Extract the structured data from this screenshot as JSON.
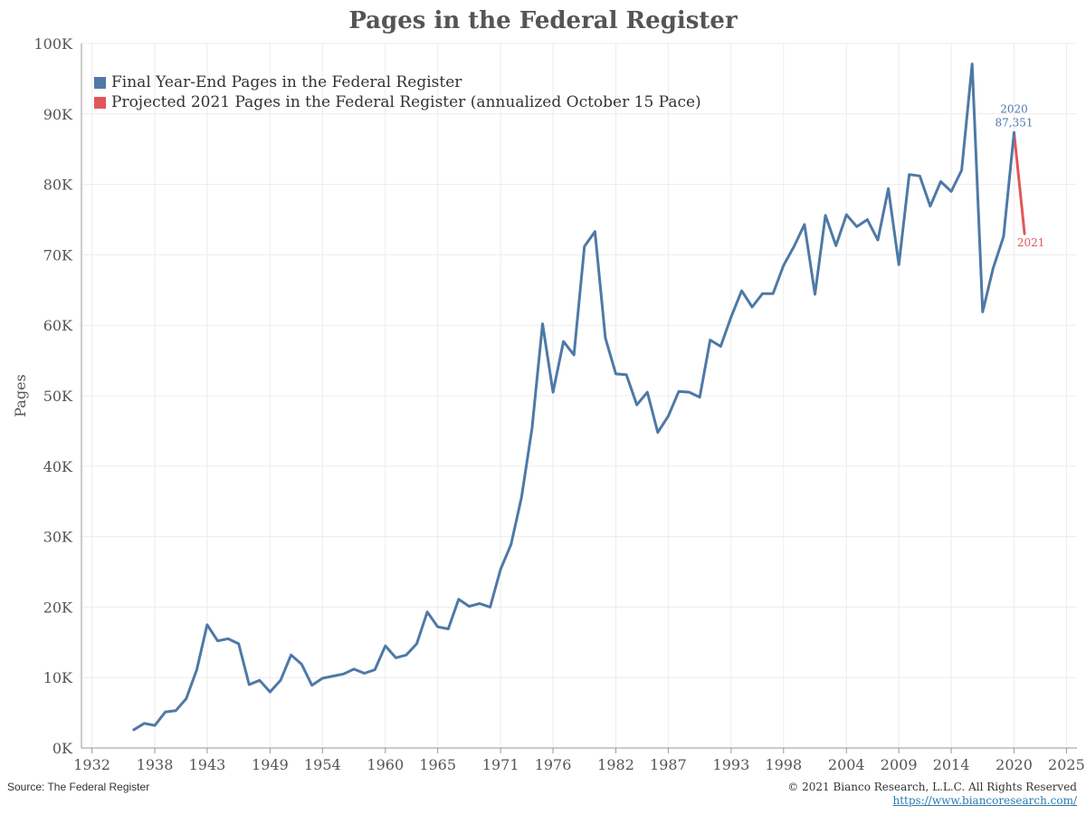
{
  "title": "Pages in the Federal Register",
  "footer": {
    "source": "Source: The Federal Register",
    "copyright": "© 2021 Bianco Research, L.L.C. All Rights Reserved",
    "url": "https://www.biancoresearch.com/"
  },
  "colors": {
    "final": "#4e79a7",
    "projected": "#e15759",
    "grid": "#ececec",
    "axis": "#999999"
  },
  "chart_data": {
    "type": "line",
    "title": "Pages in the Federal Register",
    "ylabel": "Pages",
    "xlabel": "",
    "ylim": [
      0,
      100000
    ],
    "xlim": [
      1931,
      2026
    ],
    "grid": true,
    "legend_position": "top-left",
    "y_ticks": [
      0,
      10000,
      20000,
      30000,
      40000,
      50000,
      60000,
      70000,
      80000,
      90000,
      100000
    ],
    "y_tick_labels": [
      "0K",
      "10K",
      "20K",
      "30K",
      "40K",
      "50K",
      "60K",
      "70K",
      "80K",
      "90K",
      "100K"
    ],
    "x_tick_labels": [
      "1932",
      "1938",
      "1943",
      "1949",
      "1954",
      "1960",
      "1965",
      "1971",
      "1976",
      "1982",
      "1987",
      "1993",
      "1998",
      "2004",
      "2009",
      "2014",
      "2020",
      "2025"
    ],
    "series": [
      {
        "name": "Final Year-End Pages in the Federal Register",
        "color": "#4e79a7",
        "x": [
          1936,
          1937,
          1938,
          1939,
          1940,
          1941,
          1942,
          1943,
          1944,
          1945,
          1946,
          1947,
          1948,
          1949,
          1950,
          1951,
          1952,
          1953,
          1954,
          1955,
          1956,
          1957,
          1958,
          1959,
          1960,
          1961,
          1962,
          1963,
          1964,
          1965,
          1966,
          1967,
          1968,
          1969,
          1970,
          1971,
          1972,
          1973,
          1974,
          1975,
          1976,
          1977,
          1978,
          1979,
          1980,
          1981,
          1982,
          1983,
          1984,
          1985,
          1986,
          1987,
          1988,
          1989,
          1990,
          1991,
          1992,
          1993,
          1994,
          1995,
          1996,
          1997,
          1998,
          1999,
          2000,
          2001,
          2002,
          2003,
          2004,
          2005,
          2006,
          2007,
          2008,
          2009,
          2010,
          2011,
          2012,
          2013,
          2014,
          2015,
          2016,
          2017,
          2018,
          2019,
          2020
        ],
        "values": [
          2600,
          3500,
          3200,
          5100,
          5300,
          7000,
          11100,
          17500,
          15200,
          15500,
          14800,
          9000,
          9600,
          7950,
          9600,
          13200,
          11900,
          8900,
          9900,
          10200,
          10500,
          11200,
          10600,
          11100,
          14500,
          12800,
          13200,
          14800,
          19300,
          17200,
          16900,
          21100,
          20100,
          20500,
          20000,
          25400,
          28900,
          35600,
          45400,
          60200,
          50500,
          57700,
          55800,
          71200,
          73300,
          58200,
          53100,
          53000,
          48700,
          50500,
          44800,
          47100,
          50600,
          50500,
          49800,
          57900,
          57000,
          61200,
          64900,
          62600,
          64500,
          64500,
          68500,
          71200,
          74300,
          64400,
          75600,
          71300,
          75700,
          74000,
          75000,
          72100,
          79400,
          68600,
          81400,
          81200,
          76900,
          80400,
          79000,
          82000,
          97100,
          61900,
          68100,
          72600,
          87351
        ]
      },
      {
        "name": "Projected 2021 Pages in the Federal Register (annualized October 15 Pace)",
        "color": "#e15759",
        "x": [
          2020,
          2021
        ],
        "values": [
          87351,
          73000
        ]
      }
    ],
    "annotations": [
      {
        "year_label": "2020",
        "value_label": "87,351"
      },
      {
        "year_label": "2021"
      }
    ]
  }
}
